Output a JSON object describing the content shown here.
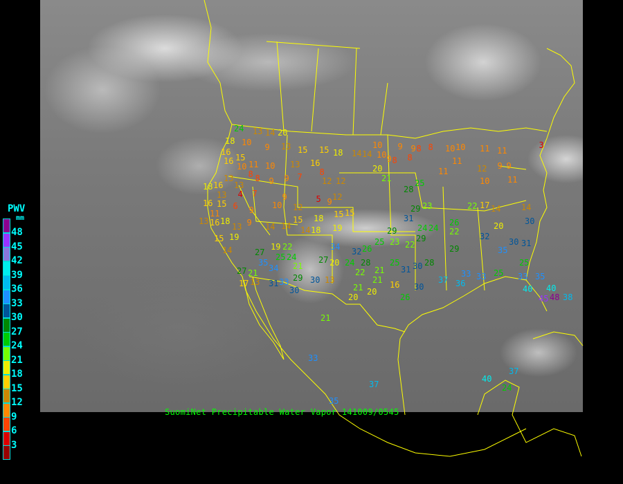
{
  "caption": "SuomiNet Precipitable Water Vapor 141009/0545",
  "legend": {
    "title": "PWV",
    "unit": "mm",
    "ticks": [
      "48",
      "45",
      "42",
      "39",
      "36",
      "33",
      "30",
      "27",
      "24",
      "21",
      "18",
      "15",
      "12",
      "9",
      "6",
      "3"
    ],
    "colors": [
      "#8b0090",
      "#9933ff",
      "#8877dd",
      "#00eeee",
      "#00bbee",
      "#1e90ff",
      "#00559a",
      "#008800",
      "#00cc00",
      "#77ff00",
      "#eeee00",
      "#ffd000",
      "#cc8800",
      "#ff8800",
      "#ff4400",
      "#dd0000",
      "#990000"
    ]
  },
  "colors": {
    "boundaries": "#ffff00",
    "caption": "#00ff00",
    "legend_text": "#00ffff"
  },
  "stations": [
    24,
    13,
    14,
    20,
    18,
    10,
    16,
    15,
    16,
    10,
    11,
    9,
    13,
    15,
    15,
    18,
    14,
    10,
    13,
    16,
    8,
    8,
    9,
    9,
    7,
    8,
    12,
    12,
    18,
    16,
    13,
    13,
    13,
    4,
    7,
    6,
    9,
    9,
    10,
    9,
    5,
    9,
    12,
    16,
    15,
    11,
    16,
    13,
    18,
    13,
    19,
    15,
    14,
    14,
    14,
    15,
    12,
    18,
    18,
    14,
    19,
    15,
    15,
    10,
    9,
    9,
    8,
    8,
    10,
    9,
    8,
    8,
    10,
    20,
    21,
    28,
    25,
    14,
    11,
    11,
    10,
    11,
    11,
    12,
    9,
    9,
    10,
    11,
    3,
    29,
    23,
    29,
    31,
    29,
    24,
    24,
    22,
    22,
    17,
    14,
    14,
    20,
    30,
    31,
    30,
    32,
    35,
    26,
    29,
    22,
    23,
    25,
    26,
    28,
    25,
    31,
    30,
    28,
    37,
    36,
    33,
    33,
    25,
    25,
    33,
    35,
    40,
    45,
    48,
    40,
    38,
    35,
    34,
    25,
    24,
    27,
    21,
    27,
    17,
    13,
    31,
    33,
    29,
    30,
    22,
    19,
    21,
    27,
    20,
    30,
    13,
    24,
    22,
    21,
    21,
    20,
    20,
    21,
    16,
    26,
    30,
    33,
    37,
    35,
    40,
    37,
    24,
    21,
    34,
    32,
    33,
    42,
    10,
    48,
    36,
    30,
    42,
    16,
    16,
    22
  ]
}
